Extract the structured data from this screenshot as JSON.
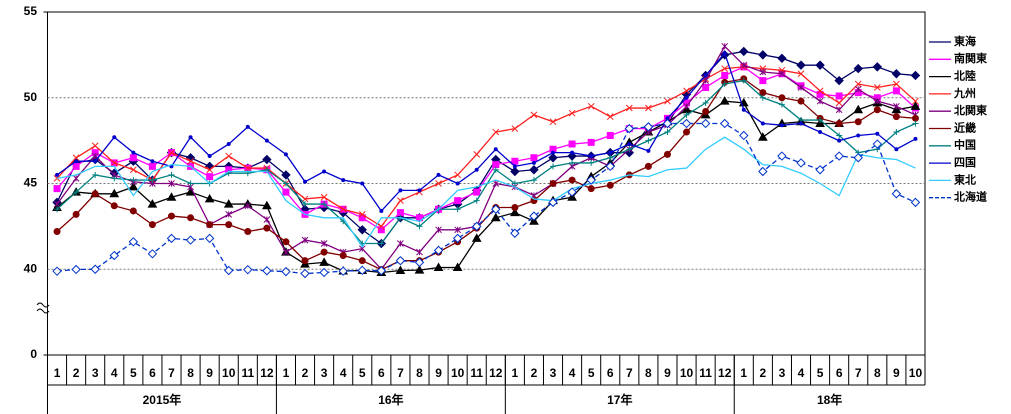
{
  "chart_data": {
    "type": "line",
    "categories": [
      "1",
      "2",
      "3",
      "4",
      "5",
      "6",
      "7",
      "8",
      "9",
      "10",
      "11",
      "12",
      "1",
      "2",
      "3",
      "4",
      "5",
      "6",
      "7",
      "8",
      "9",
      "10",
      "11",
      "12",
      "1",
      "2",
      "3",
      "4",
      "5",
      "6",
      "7",
      "8",
      "9",
      "10",
      "11",
      "12",
      "1",
      "2",
      "3",
      "4",
      "5",
      "6",
      "7",
      "8",
      "9",
      "10"
    ],
    "category_groups": [
      "2015年",
      "16年",
      "17年",
      "18年"
    ],
    "ylim": [
      0,
      55
    ],
    "yticks": [
      0,
      40,
      45,
      50,
      55
    ],
    "axis_break": [
      0,
      40
    ],
    "grid": true,
    "legend": "right",
    "series": [
      {
        "name": "東海",
        "color": "#000066",
        "marker": "diamond",
        "values": [
          43.9,
          46.2,
          46.4,
          45.6,
          46.3,
          45.2,
          46.8,
          46.5,
          46.0,
          46.0,
          45.9,
          46.4,
          45.5,
          43.5,
          43.6,
          43.3,
          42.3,
          41.5,
          43.0,
          43.0,
          43.5,
          43.8,
          44.6,
          46.4,
          45.7,
          45.8,
          46.5,
          46.6,
          46.6,
          46.8,
          46.8,
          48.3,
          48.5,
          50.2,
          51.3,
          52.5,
          52.7,
          52.5,
          52.3,
          51.9,
          51.9,
          51.0,
          51.7,
          51.8,
          51.4,
          51.3
        ]
      },
      {
        "name": "南関東",
        "color": "#ff00ff",
        "marker": "square",
        "values": [
          44.7,
          46.0,
          46.8,
          46.2,
          46.5,
          46.0,
          46.8,
          46.0,
          45.4,
          45.8,
          45.9,
          45.8,
          44.5,
          43.2,
          43.8,
          43.5,
          43.0,
          42.3,
          43.3,
          43.0,
          43.5,
          44.0,
          44.5,
          46.1,
          46.3,
          46.5,
          47.0,
          47.3,
          47.4,
          47.8,
          48.2,
          48.2,
          48.8,
          49.7,
          50.6,
          51.3,
          51.8,
          51.0,
          51.4,
          50.7,
          50.2,
          50.1,
          50.3,
          50.0,
          50.4,
          49.4
        ]
      },
      {
        "name": "北陸",
        "color": "#000000",
        "marker": "triangle",
        "values": [
          43.6,
          44.5,
          44.4,
          44.4,
          44.8,
          43.8,
          44.2,
          44.5,
          44.1,
          43.8,
          43.8,
          43.7,
          41.0,
          40.3,
          40.4,
          39.2,
          39.4,
          38.5,
          39.4,
          39.6,
          40.1,
          40.1,
          41.8,
          43.0,
          43.3,
          42.8,
          44.0,
          44.2,
          45.4,
          46.2,
          47.4,
          48.0,
          48.6,
          49.3,
          49.0,
          49.8,
          49.7,
          47.7,
          48.5,
          48.6,
          48.5,
          48.5,
          49.3,
          49.7,
          49.3,
          49.5
        ]
      },
      {
        "name": "九州",
        "color": "#ff2020",
        "marker": "x",
        "values": [
          45.3,
          46.5,
          47.2,
          46.2,
          45.8,
          45.2,
          46.8,
          46.3,
          45.8,
          46.6,
          45.9,
          45.9,
          45.0,
          44.1,
          44.2,
          43.5,
          43.2,
          42.5,
          44.0,
          44.5,
          45.0,
          45.5,
          46.7,
          48.0,
          48.2,
          49.0,
          48.6,
          49.1,
          49.5,
          48.9,
          49.4,
          49.4,
          49.8,
          50.4,
          51.1,
          51.7,
          51.8,
          51.7,
          51.6,
          51.4,
          50.4,
          49.7,
          50.8,
          50.6,
          50.8,
          49.8
        ]
      },
      {
        "name": "北関東",
        "color": "#800080",
        "marker": "asterisk",
        "values": [
          43.8,
          45.3,
          46.6,
          45.5,
          45.1,
          45.0,
          45.0,
          44.8,
          42.6,
          43.2,
          43.7,
          42.9,
          41.0,
          41.7,
          41.5,
          41.0,
          41.2,
          40.0,
          41.5,
          41.0,
          42.3,
          42.3,
          42.5,
          45.0,
          44.8,
          44.3,
          45.0,
          46.0,
          46.5,
          46.0,
          47.0,
          48.0,
          48.4,
          49.5,
          51.0,
          53.0,
          51.9,
          51.5,
          51.4,
          50.6,
          49.8,
          49.3,
          50.5,
          49.8,
          49.5,
          49.0
        ]
      },
      {
        "name": "近畿",
        "color": "#800000",
        "marker": "circle",
        "values": [
          42.2,
          43.2,
          44.4,
          43.7,
          43.4,
          42.6,
          43.1,
          43.0,
          42.6,
          42.6,
          42.2,
          42.4,
          41.6,
          40.5,
          41.0,
          40.8,
          40.5,
          39.8,
          40.5,
          40.5,
          41.0,
          41.6,
          42.4,
          43.6,
          43.6,
          44.0,
          45.0,
          45.2,
          44.7,
          44.9,
          45.5,
          46.0,
          46.7,
          48.0,
          49.2,
          50.9,
          51.1,
          50.3,
          50.0,
          49.8,
          48.8,
          48.5,
          48.6,
          49.3,
          48.9,
          48.8
        ]
      },
      {
        "name": "中国",
        "color": "#008080",
        "marker": "plus",
        "values": [
          43.5,
          44.5,
          45.5,
          45.3,
          45.2,
          45.2,
          45.5,
          45.0,
          45.0,
          45.6,
          45.6,
          45.8,
          45.0,
          43.8,
          43.8,
          42.8,
          41.5,
          41.5,
          43.0,
          42.5,
          43.5,
          43.5,
          44.0,
          45.8,
          45.0,
          45.2,
          46.0,
          46.2,
          46.2,
          46.5,
          47.0,
          47.5,
          48.0,
          49.0,
          49.7,
          50.8,
          51.0,
          50.0,
          49.6,
          48.7,
          48.7,
          47.8,
          46.8,
          47.0,
          48.0,
          48.5
        ]
      },
      {
        "name": "四国",
        "color": "#0000cc",
        "marker": "dot",
        "values": [
          45.5,
          46.3,
          46.3,
          47.7,
          46.8,
          46.3,
          46.0,
          47.7,
          46.6,
          47.3,
          48.3,
          47.5,
          46.7,
          45.1,
          45.7,
          45.2,
          45.0,
          43.4,
          44.6,
          44.6,
          45.5,
          45.0,
          45.8,
          47.0,
          46.0,
          46.2,
          46.8,
          46.8,
          46.6,
          46.8,
          47.3,
          46.9,
          48.8,
          50.0,
          51.3,
          52.6,
          49.3,
          48.5,
          48.4,
          48.5,
          48.0,
          47.5,
          47.8,
          47.9,
          47.0,
          47.6
        ]
      },
      {
        "name": "東北",
        "color": "#33ccff",
        "marker": "none",
        "values": [
          45.3,
          45.5,
          46.0,
          46.0,
          44.3,
          45.7,
          46.1,
          46.0,
          45.0,
          45.7,
          45.7,
          45.7,
          44.0,
          43.2,
          43.0,
          43.0,
          41.3,
          43.0,
          43.0,
          42.8,
          43.5,
          44.6,
          44.8,
          45.2,
          44.8,
          44.1,
          44.0,
          44.7,
          45.0,
          45.2,
          45.5,
          45.4,
          45.8,
          45.9,
          47.0,
          47.7,
          47.0,
          46.1,
          46.0,
          45.6,
          45.0,
          44.3,
          46.7,
          46.5,
          46.4,
          45.9
        ]
      },
      {
        "name": "北海道",
        "color": "#0033cc",
        "marker": "open-diamond",
        "dashed": true,
        "values": [
          39.1,
          39.9,
          40.0,
          40.8,
          41.6,
          40.9,
          41.8,
          41.7,
          41.8,
          39.4,
          39.8,
          39.3,
          38.9,
          38.0,
          38.5,
          39.1,
          39.5,
          39.3,
          40.5,
          40.4,
          41.1,
          41.8,
          42.5,
          43.5,
          42.1,
          43.1,
          43.9,
          44.5,
          45.2,
          46.0,
          48.2,
          48.3,
          48.5,
          48.5,
          48.5,
          48.5,
          47.8,
          45.7,
          46.6,
          46.2,
          45.8,
          46.6,
          46.5,
          47.3,
          44.4,
          43.9
        ]
      }
    ]
  }
}
